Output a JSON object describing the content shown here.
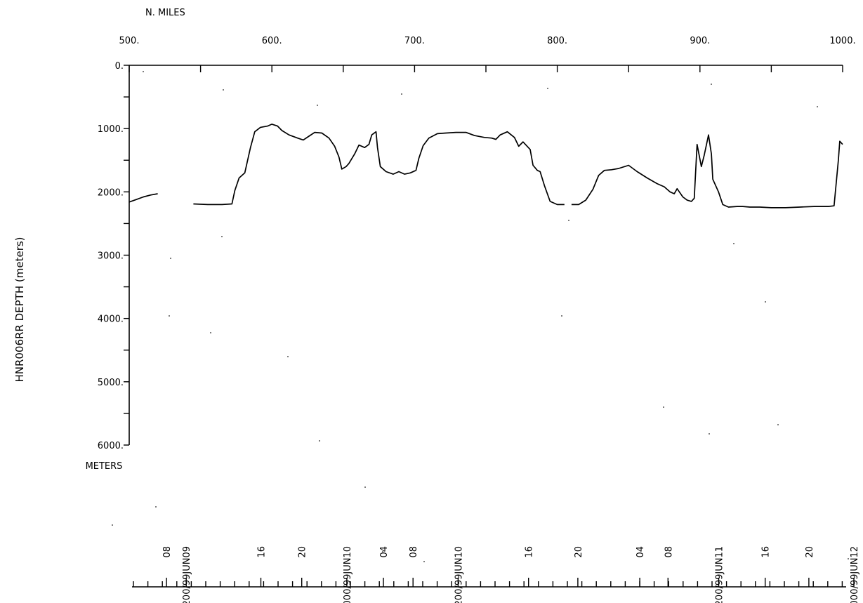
{
  "chart_data": {
    "type": "line",
    "title": "",
    "x_unit_label": "N. MILES",
    "xlim": [
      500,
      1000
    ],
    "x_tick_labels": [
      "500.",
      "600.",
      "700.",
      "800.",
      "900.",
      "1000."
    ],
    "x_tick_values": [
      500,
      600,
      700,
      800,
      900,
      1000
    ],
    "x_minor_tick_values": [
      550,
      650,
      750,
      850,
      950
    ],
    "ylabel": "HNR006RR DEPTH (meters)",
    "y_unit_label": "METERS",
    "ylim": [
      0,
      6000
    ],
    "y_inverted": true,
    "y_tick_labels": [
      "0.",
      "1000.",
      "2000.",
      "3000.",
      "4000.",
      "5000.",
      "6000."
    ],
    "y_tick_values": [
      0,
      1000,
      2000,
      3000,
      4000,
      5000,
      6000
    ],
    "y_minor_tick_values": [
      500,
      1500,
      2500,
      3500,
      4500,
      5500
    ],
    "grid": false,
    "series": [
      {
        "segments": [
          [
            [
              500,
              2160
            ],
            [
              505,
              2120
            ],
            [
              510,
              2080
            ],
            [
              515,
              2050
            ],
            [
              520,
              2030
            ]
          ],
          [
            [
              545,
              2190
            ],
            [
              555,
              2200
            ],
            [
              565,
              2200
            ],
            [
              572,
              2190
            ],
            [
              574,
              1980
            ],
            [
              577,
              1780
            ],
            [
              581,
              1700
            ],
            [
              585,
              1300
            ],
            [
              588,
              1050
            ],
            [
              592,
              980
            ],
            [
              597,
              960
            ],
            [
              600,
              930
            ],
            [
              604,
              960
            ],
            [
              607,
              1030
            ],
            [
              612,
              1100
            ],
            [
              618,
              1150
            ],
            [
              622,
              1180
            ],
            [
              626,
              1120
            ],
            [
              630,
              1060
            ],
            [
              635,
              1070
            ],
            [
              640,
              1150
            ],
            [
              644,
              1280
            ],
            [
              647,
              1450
            ],
            [
              649,
              1640
            ],
            [
              652,
              1600
            ],
            [
              654,
              1550
            ],
            [
              658,
              1400
            ],
            [
              661,
              1260
            ],
            [
              665,
              1300
            ],
            [
              668,
              1250
            ],
            [
              670,
              1100
            ],
            [
              673,
              1050
            ],
            [
              674,
              1300
            ],
            [
              676,
              1600
            ],
            [
              680,
              1680
            ],
            [
              685,
              1720
            ],
            [
              689,
              1680
            ],
            [
              693,
              1720
            ],
            [
              697,
              1700
            ],
            [
              701,
              1660
            ],
            [
              703,
              1470
            ],
            [
              706,
              1270
            ],
            [
              710,
              1150
            ],
            [
              716,
              1080
            ],
            [
              722,
              1070
            ],
            [
              729,
              1060
            ],
            [
              736,
              1060
            ],
            [
              742,
              1110
            ],
            [
              749,
              1140
            ],
            [
              754,
              1150
            ],
            [
              757,
              1170
            ],
            [
              760,
              1100
            ],
            [
              765,
              1050
            ],
            [
              770,
              1140
            ],
            [
              773,
              1280
            ],
            [
              776,
              1210
            ],
            [
              781,
              1330
            ],
            [
              783,
              1580
            ],
            [
              786,
              1660
            ],
            [
              788,
              1680
            ],
            [
              791,
              1900
            ],
            [
              795,
              2150
            ],
            [
              800,
              2200
            ],
            [
              805,
              2200
            ]
          ],
          [
            [
              810,
              2200
            ],
            [
              815,
              2200
            ],
            [
              820,
              2130
            ],
            [
              825,
              1960
            ],
            [
              829,
              1740
            ],
            [
              833,
              1660
            ],
            [
              838,
              1650
            ],
            [
              843,
              1630
            ],
            [
              850,
              1580
            ],
            [
              856,
              1680
            ],
            [
              863,
              1780
            ],
            [
              870,
              1870
            ],
            [
              875,
              1920
            ],
            [
              879,
              2000
            ],
            [
              882,
              2030
            ],
            [
              884,
              1950
            ],
            [
              888,
              2080
            ],
            [
              891,
              2130
            ],
            [
              894,
              2150
            ],
            [
              896,
              2100
            ],
            [
              898,
              1250
            ],
            [
              901,
              1600
            ],
            [
              903,
              1420
            ],
            [
              906,
              1100
            ],
            [
              908,
              1400
            ],
            [
              909,
              1800
            ],
            [
              913,
              2000
            ],
            [
              916,
              2200
            ],
            [
              920,
              2240
            ],
            [
              926,
              2230
            ],
            [
              930,
              2230
            ],
            [
              935,
              2240
            ],
            [
              942,
              2240
            ],
            [
              950,
              2250
            ],
            [
              960,
              2250
            ],
            [
              970,
              2240
            ],
            [
              980,
              2230
            ],
            [
              990,
              2230
            ],
            [
              994,
              2220
            ],
            [
              997,
              1500
            ],
            [
              998,
              1200
            ],
            [
              1000,
              1250
            ]
          ]
        ]
      }
    ],
    "time_axis": {
      "labels": [
        "08",
        "1200/99JUN09",
        "16",
        "20",
        "0000/99JUN10",
        "04",
        "08",
        "1200/99JUN10",
        "16",
        "20",
        "04",
        "08",
        "1200/99JUN11",
        "16",
        "20",
        "0000/99JUN12"
      ],
      "label_miles": [
        520,
        534,
        587,
        616,
        648,
        674,
        695,
        727,
        777,
        812,
        856,
        876,
        912,
        945,
        976,
        1008
      ]
    }
  }
}
